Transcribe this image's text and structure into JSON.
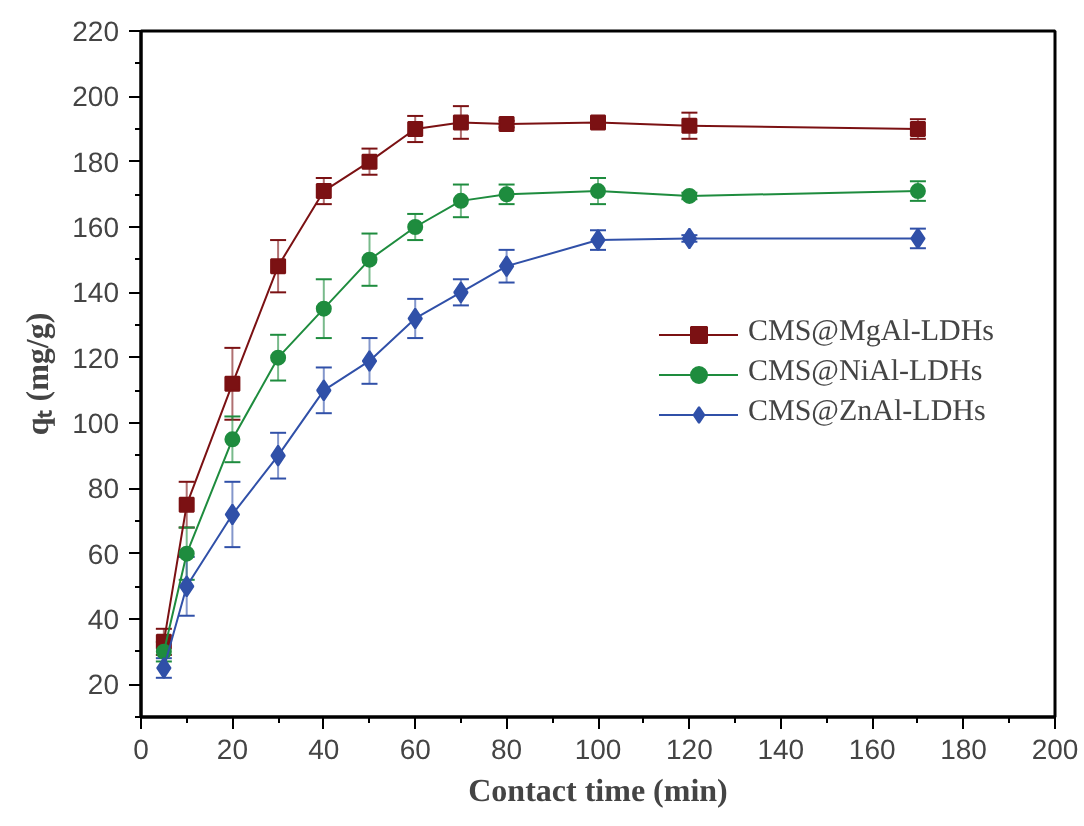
{
  "chart_data": {
    "type": "line",
    "xlabel": "Contact time (min)",
    "ylabel": "qₜ (mg/g)",
    "x": [
      5,
      10,
      20,
      30,
      40,
      50,
      60,
      70,
      80,
      100,
      120,
      170
    ],
    "series": [
      {
        "name": "CMS@MgAl-LDHs",
        "color": "#7b1113",
        "marker": "square",
        "values": [
          33,
          75,
          112,
          148,
          171,
          180,
          190,
          192,
          191.5,
          192,
          191,
          190
        ],
        "errors": [
          4,
          7,
          11,
          8,
          4,
          4,
          4,
          5,
          1,
          1,
          4,
          3
        ]
      },
      {
        "name": "CMS@NiAl-LDHs",
        "color": "#1e8c3e",
        "marker": "circle",
        "values": [
          30,
          60,
          95,
          120,
          135,
          150,
          160,
          168,
          170,
          171,
          169.5,
          171
        ],
        "errors": [
          3,
          8,
          7,
          7,
          9,
          8,
          4,
          5,
          3,
          4,
          1,
          3
        ]
      },
      {
        "name": "CMS@ZnAl-LDHs",
        "color": "#3050a8",
        "marker": "diamond",
        "values": [
          25,
          50,
          72,
          90,
          110,
          119,
          132,
          140,
          148,
          156,
          156.5,
          156.5
        ],
        "errors": [
          3,
          9,
          10,
          7,
          7,
          7,
          6,
          4,
          5,
          3,
          1,
          3
        ]
      }
    ],
    "xlim": [
      0,
      200
    ],
    "xticks": [
      0,
      20,
      40,
      60,
      80,
      100,
      120,
      140,
      160,
      180,
      200
    ],
    "ylim": [
      10,
      220
    ],
    "yticks": [
      20,
      40,
      60,
      80,
      100,
      120,
      140,
      160,
      180,
      200,
      220
    ],
    "grid": false,
    "legend": "right",
    "line_style": "solid"
  }
}
